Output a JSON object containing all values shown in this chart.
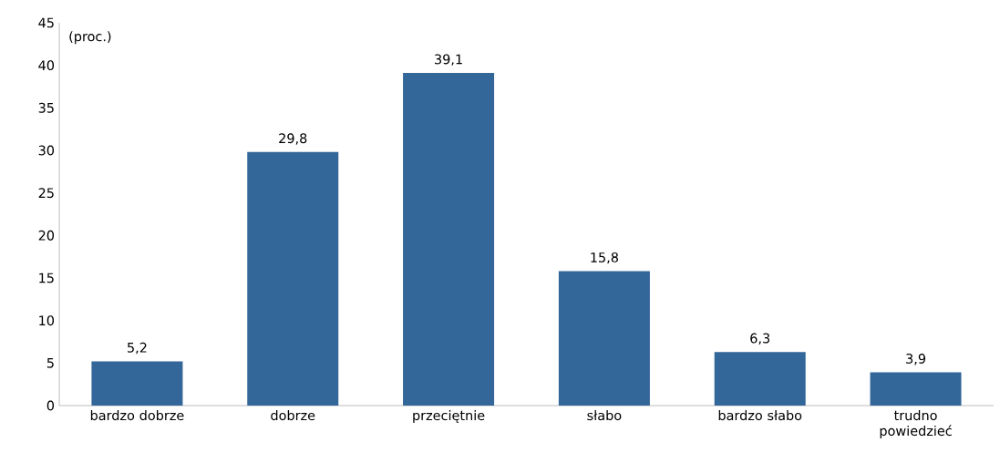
{
  "chart_data": {
    "type": "bar",
    "ylabel": "(proc.)",
    "categories": [
      "bardzo dobrze",
      "dobrze",
      "przeciętnie",
      "słabo",
      "bardzo słabo",
      "trudno powiedzieć"
    ],
    "values": [
      5.2,
      29.8,
      39.1,
      15.8,
      6.3,
      3.9
    ],
    "value_labels": [
      "5,2",
      "29,8",
      "39,1",
      "15,8",
      "6,3",
      "3,9"
    ],
    "color": "#336699",
    "ylim": [
      0,
      45
    ],
    "yticks": [
      0,
      5,
      10,
      15,
      20,
      25,
      30,
      35,
      40,
      45
    ],
    "grid": false
  }
}
